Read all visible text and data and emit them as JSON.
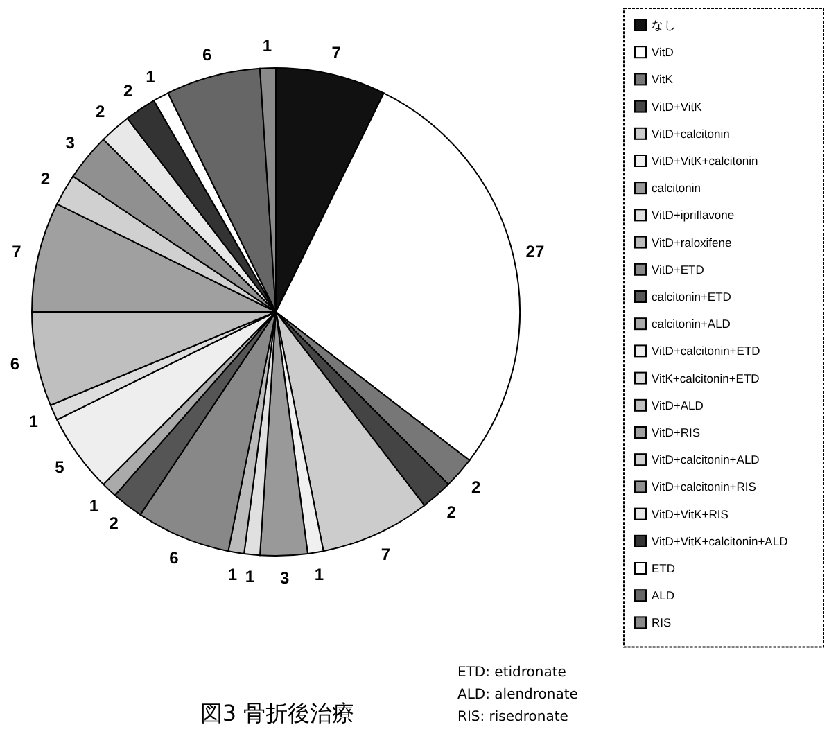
{
  "chart_data": {
    "type": "pie",
    "title": "図3 骨折後治療",
    "categories": [
      "なし",
      "VitD",
      "VitK",
      "VitD+VitK",
      "VitD+calcitonin",
      "VitD+VitK+calcitonin",
      "calcitonin",
      "VitD+ipriflavone",
      "VitD+raloxifene",
      "VitD+ETD",
      "calcitonin+ETD",
      "calcitonin+ALD",
      "VitD+calcitonin+ETD",
      "VitK+calcitonin+ETD",
      "VitD+ALD",
      "VitD+RIS",
      "VitD+calcitonin+ALD",
      "VitD+calcitonin+RIS",
      "VitD+VitK+RIS",
      "VitD+VitK+calcitonin+ALD",
      "ETD",
      "ALD",
      "RIS"
    ],
    "values": [
      7,
      27,
      2,
      2,
      7,
      1,
      3,
      1,
      1,
      6,
      2,
      1,
      5,
      1,
      6,
      7,
      2,
      3,
      2,
      2,
      1,
      6,
      1
    ],
    "colors": [
      "#111111",
      "#ffffff",
      "#777777",
      "#444444",
      "#cccccc",
      "#f0f0f0",
      "#999999",
      "#e0e0e0",
      "#bbbbbb",
      "#888888",
      "#555555",
      "#aaaaaa",
      "#eeeeee",
      "#dddddd",
      "#bfbfbf",
      "#a0a0a0",
      "#d0d0d0",
      "#909090",
      "#e8e8e8",
      "#333333",
      "#ffffff",
      "#666666",
      "#8a8a8a"
    ],
    "data_labels": true,
    "legend": "right",
    "annotations": [
      "ETD: etidronate",
      "ALD: alendronate",
      "RIS: risedronate"
    ]
  }
}
